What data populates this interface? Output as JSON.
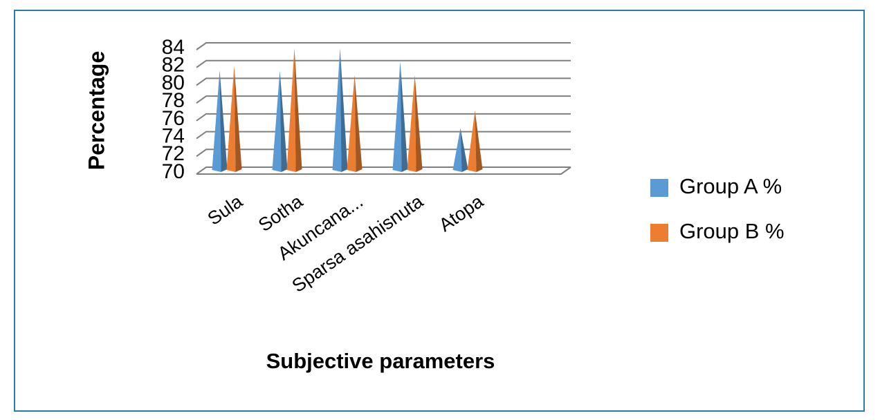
{
  "chart_data": {
    "type": "cone",
    "y_label": "Percentage",
    "x_label": "Subjective parameters",
    "categories": [
      "Sula",
      "Sotha",
      "Akuncana...",
      "Sparsa asahisnuta",
      "Atopa"
    ],
    "series": [
      {
        "name": "Group A %",
        "color": "#5b9bd5",
        "values": [
          81.5,
          81.5,
          84,
          82.5,
          75
        ]
      },
      {
        "name": "Group B %",
        "color": "#ed7d31",
        "values": [
          82,
          84,
          81,
          81,
          77
        ]
      }
    ],
    "ylim": [
      70,
      84
    ],
    "yticks": [
      70,
      72,
      74,
      76,
      78,
      80,
      82,
      84
    ],
    "grid": true,
    "legend": "right"
  }
}
